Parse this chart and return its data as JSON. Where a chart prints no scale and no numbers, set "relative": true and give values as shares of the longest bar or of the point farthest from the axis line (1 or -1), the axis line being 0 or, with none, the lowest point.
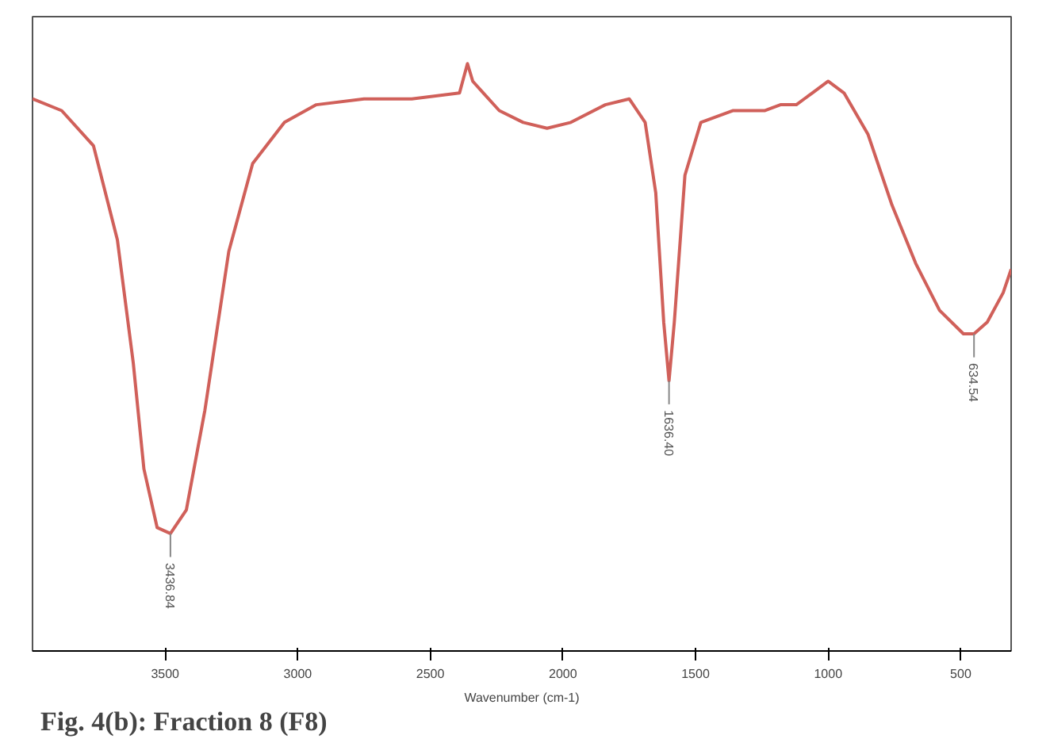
{
  "chart_data": {
    "type": "line",
    "relative": true,
    "xlabel": "Wavenumber (cm-1)",
    "xlim": [
      4000,
      310
    ],
    "xticks": [
      3500,
      3000,
      2500,
      2000,
      1500,
      1000,
      500
    ],
    "grid": false,
    "marker": "none",
    "line_style": "solid",
    "x": [
      4000,
      3890,
      3770,
      3680,
      3620,
      3580,
      3530,
      3480,
      3420,
      3350,
      3260,
      3170,
      3050,
      2930,
      2750,
      2570,
      2390,
      2360,
      2340,
      2300,
      2240,
      2150,
      2060,
      1970,
      1840,
      1750,
      1690,
      1650,
      1620,
      1600,
      1580,
      1540,
      1480,
      1360,
      1240,
      1180,
      1120,
      1060,
      1000,
      940,
      850,
      760,
      670,
      580,
      490,
      450,
      400,
      340,
      310
    ],
    "series": [
      {
        "color": "#d0605a",
        "values": [
          0.94,
          0.92,
          0.86,
          0.7,
          0.49,
          0.31,
          0.21,
          0.2,
          0.24,
          0.41,
          0.68,
          0.83,
          0.9,
          0.93,
          0.94,
          0.94,
          0.95,
          1.0,
          0.97,
          0.95,
          0.92,
          0.9,
          0.89,
          0.9,
          0.93,
          0.94,
          0.9,
          0.78,
          0.56,
          0.46,
          0.56,
          0.81,
          0.9,
          0.92,
          0.92,
          0.93,
          0.93,
          0.95,
          0.97,
          0.95,
          0.88,
          0.76,
          0.66,
          0.58,
          0.54,
          0.54,
          0.56,
          0.61,
          0.65
        ]
      }
    ],
    "annotations": [
      {
        "text": "3436.84",
        "x": 3480,
        "y": 0.2
      },
      {
        "text": "1636.40",
        "x": 1600,
        "y": 0.46
      },
      {
        "text": "634.54",
        "x": 450,
        "y": 0.54
      },
      "Fig. 4(b): Fraction 8 (F8)"
    ]
  }
}
